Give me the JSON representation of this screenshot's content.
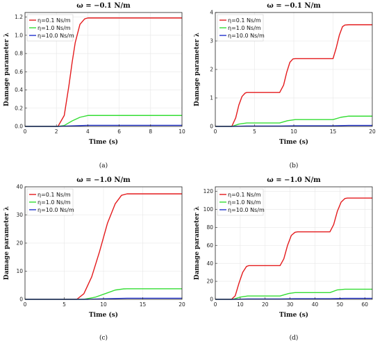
{
  "chart_data": [
    {
      "type": "line",
      "panel": "(a)",
      "title": "ω = −0.1 N/m",
      "xlabel": "Time (s)",
      "ylabel": "Damage parameter λ",
      "xlim": [
        0,
        10
      ],
      "ylim": [
        0,
        1.25
      ],
      "xticks": [
        0,
        2,
        4,
        6,
        8,
        10
      ],
      "yticks": [
        0,
        0.2,
        0.4,
        0.6,
        0.8,
        1.0,
        1.2
      ],
      "ytick_labels": [
        "0.0",
        "0.2",
        "0.4",
        "0.6",
        "0.8",
        "1.0",
        "1.2"
      ],
      "grid": true,
      "legend_position": "top-left",
      "series": [
        {
          "name": "η=0.1 Ns/m",
          "color": "#e41a1c",
          "x": [
            0,
            2.1,
            2.5,
            2.8,
            3.0,
            3.2,
            3.5,
            3.8,
            4.0,
            10
          ],
          "y": [
            0,
            0,
            0.12,
            0.45,
            0.7,
            0.92,
            1.12,
            1.18,
            1.19,
            1.19
          ]
        },
        {
          "name": "η=1.0 Ns/m",
          "color": "#33dd33",
          "x": [
            0,
            2.1,
            2.5,
            3.0,
            3.5,
            4.0,
            10
          ],
          "y": [
            0,
            0,
            0.01,
            0.06,
            0.1,
            0.12,
            0.12
          ]
        },
        {
          "name": "η=10.0 Ns/m",
          "color": "#2233cc",
          "x": [
            0,
            2.1,
            3.0,
            4.0,
            10
          ],
          "y": [
            0,
            0,
            0.006,
            0.012,
            0.012
          ]
        }
      ]
    },
    {
      "type": "line",
      "panel": "(b)",
      "title": "ω = −0.1 N/m",
      "xlabel": "Time (s)",
      "ylabel": "Damage parameter λ",
      "xlim": [
        0,
        20
      ],
      "ylim": [
        0,
        4
      ],
      "xticks": [
        0,
        5,
        10,
        15,
        20
      ],
      "yticks": [
        0,
        1,
        2,
        3,
        4
      ],
      "ytick_labels": [
        "0",
        "1",
        "2",
        "3",
        "4"
      ],
      "grid": true,
      "legend_position": "top-left",
      "series": [
        {
          "name": "η=0.1 Ns/m",
          "color": "#e41a1c",
          "x": [
            0,
            2.1,
            2.6,
            3.0,
            3.4,
            3.8,
            4.0,
            8.2,
            8.7,
            9.1,
            9.5,
            9.9,
            10.2,
            15.0,
            15.4,
            15.8,
            16.2,
            16.5,
            17.0,
            20
          ],
          "y": [
            0,
            0,
            0.3,
            0.75,
            1.05,
            1.17,
            1.19,
            1.19,
            1.45,
            1.9,
            2.25,
            2.37,
            2.38,
            2.38,
            2.75,
            3.2,
            3.5,
            3.56,
            3.57,
            3.57
          ]
        },
        {
          "name": "η=1.0 Ns/m",
          "color": "#33dd33",
          "x": [
            0,
            2.1,
            3.0,
            4.0,
            8.2,
            9.2,
            10.2,
            15.0,
            16.0,
            17.0,
            20
          ],
          "y": [
            0,
            0,
            0.08,
            0.12,
            0.12,
            0.2,
            0.24,
            0.24,
            0.32,
            0.36,
            0.36
          ]
        },
        {
          "name": "η=10.0 Ns/m",
          "color": "#2233cc",
          "x": [
            0,
            2.1,
            4.0,
            8.2,
            10.2,
            15.0,
            17.0,
            20
          ],
          "y": [
            0,
            0,
            0.012,
            0.012,
            0.024,
            0.024,
            0.036,
            0.036
          ]
        }
      ]
    },
    {
      "type": "line",
      "panel": "(c)",
      "title": "ω = −1.0 N/m",
      "xlabel": "Time (s)",
      "ylabel": "Damage parameter λ",
      "xlim": [
        0,
        20
      ],
      "ylim": [
        0,
        40
      ],
      "xticks": [
        0,
        5,
        10,
        15,
        20
      ],
      "yticks": [
        0,
        10,
        20,
        30,
        40
      ],
      "ytick_labels": [
        "0",
        "10",
        "20",
        "30",
        "40"
      ],
      "grid": true,
      "legend_position": "top-left",
      "series": [
        {
          "name": "η=0.1 Ns/m",
          "color": "#e41a1c",
          "x": [
            0,
            6.6,
            7.5,
            8.5,
            9.5,
            10.5,
            11.5,
            12.3,
            13.0,
            20
          ],
          "y": [
            0,
            0,
            2,
            8,
            17,
            27,
            34,
            37,
            37.5,
            37.5
          ]
        },
        {
          "name": "η=1.0 Ns/m",
          "color": "#33dd33",
          "x": [
            0,
            7.5,
            9.0,
            10.5,
            11.5,
            12.5,
            13.0,
            20
          ],
          "y": [
            0,
            0,
            0.8,
            2.3,
            3.3,
            3.7,
            3.75,
            3.75
          ]
        },
        {
          "name": "η=10.0 Ns/m",
          "color": "#2233cc",
          "x": [
            0,
            8.0,
            10.0,
            13.0,
            20
          ],
          "y": [
            0,
            0,
            0.2,
            0.38,
            0.38
          ]
        }
      ]
    },
    {
      "type": "line",
      "panel": "(d)",
      "title": "ω = −1.0 N/m",
      "xlabel": "Time (s)",
      "ylabel": "Damage parameter λ",
      "xlim": [
        0,
        63
      ],
      "ylim": [
        0,
        125
      ],
      "xticks": [
        0,
        10,
        20,
        30,
        40,
        50,
        60
      ],
      "yticks": [
        0,
        20,
        40,
        60,
        80,
        100,
        120
      ],
      "ytick_labels": [
        "0",
        "20",
        "40",
        "60",
        "80",
        "100",
        "120"
      ],
      "grid": true,
      "legend_position": "top-left",
      "series": [
        {
          "name": "η=0.1 Ns/m",
          "color": "#e41a1c",
          "x": [
            0,
            6.5,
            8.0,
            9.5,
            11.0,
            12.5,
            13.5,
            26.0,
            27.5,
            29.0,
            30.5,
            32.0,
            33.0,
            46.0,
            47.5,
            49.0,
            50.5,
            52.0,
            53.0,
            63
          ],
          "y": [
            0,
            0,
            4,
            18,
            30,
            36.5,
            37.5,
            37.5,
            45,
            60,
            71,
            74.5,
            75,
            75,
            83,
            98,
            108,
            112,
            112.5,
            112.5
          ]
        },
        {
          "name": "η=1.0 Ns/m",
          "color": "#33dd33",
          "x": [
            0,
            7.0,
            10.0,
            13.0,
            26.0,
            29.5,
            32.0,
            46.0,
            49.0,
            52.0,
            63
          ],
          "y": [
            0,
            0,
            2.5,
            3.75,
            3.75,
            6.5,
            7.5,
            7.5,
            10.5,
            11.25,
            11.25
          ]
        },
        {
          "name": "η=10.0 Ns/m",
          "color": "#2233cc",
          "x": [
            0,
            8.0,
            13.0,
            26.0,
            32.0,
            46.0,
            52.0,
            63
          ],
          "y": [
            0,
            0,
            0.38,
            0.38,
            0.75,
            0.75,
            1.13,
            1.13
          ]
        }
      ]
    }
  ]
}
